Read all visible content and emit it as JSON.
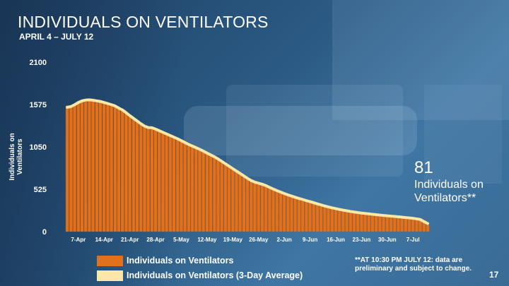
{
  "slide": {
    "title": "INDIVIDUALS ON VENTILATORS",
    "subtitle": "APRIL 4 – JULY 12",
    "callout_number": "81",
    "callout_text": "Individuals on Ventilators**",
    "footnote": "**AT 10:30 PM JULY 12: data are preliminary and subject to change.",
    "slide_number": "17"
  },
  "colors": {
    "bar": "#e2711d",
    "bar_edge": "#b5560e",
    "average_line": "#fbe8a6",
    "text": "#ffffff"
  },
  "chart_data": {
    "type": "bar",
    "title": "INDIVIDUALS ON VENTILATORS",
    "ylabel": "Individuals on Ventilators",
    "xlabel": "",
    "ylim": [
      0,
      2100
    ],
    "yticks": [
      0,
      525,
      1050,
      1575,
      2100
    ],
    "xtick_labels": [
      "7-Apr",
      "14-Apr",
      "21-Apr",
      "28-Apr",
      "5-May",
      "12-May",
      "19-May",
      "26-May",
      "2-Jun",
      "9-Jun",
      "16-Jun",
      "23-Jun",
      "30-Jun",
      "7-Jul"
    ],
    "xtick_indices": [
      3,
      10,
      17,
      24,
      31,
      38,
      45,
      52,
      59,
      66,
      73,
      80,
      87,
      94
    ],
    "grid": false,
    "legend_position": "bottom",
    "series": [
      {
        "name": "Individuals on Ventilators",
        "kind": "bar",
        "values": [
          1560,
          1540,
          1580,
          1600,
          1620,
          1610,
          1630,
          1640,
          1600,
          1620,
          1610,
          1590,
          1580,
          1560,
          1530,
          1510,
          1480,
          1440,
          1400,
          1370,
          1340,
          1300,
          1280,
          1290,
          1270,
          1250,
          1230,
          1210,
          1190,
          1170,
          1150,
          1130,
          1100,
          1080,
          1060,
          1040,
          1020,
          1000,
          970,
          950,
          930,
          900,
          870,
          840,
          810,
          780,
          750,
          720,
          690,
          660,
          630,
          610,
          600,
          590,
          570,
          550,
          525,
          510,
          490,
          470,
          455,
          440,
          425,
          410,
          398,
          385,
          370,
          358,
          345,
          330,
          318,
          305,
          295,
          285,
          275,
          265,
          258,
          250,
          243,
          236,
          230,
          225,
          220,
          215,
          210,
          205,
          200,
          196,
          192,
          188,
          184,
          180,
          175,
          170,
          165,
          160,
          150,
          140,
          81
        ]
      },
      {
        "name": "Individuals on Ventilators (3-Day Average)",
        "kind": "line",
        "values": [
          1540,
          1550,
          1573,
          1600,
          1620,
          1630,
          1633,
          1628,
          1620,
          1613,
          1600,
          1587,
          1573,
          1557,
          1530,
          1507,
          1473,
          1437,
          1403,
          1370,
          1337,
          1307,
          1290,
          1287,
          1270,
          1250,
          1230,
          1210,
          1190,
          1170,
          1150,
          1127,
          1103,
          1080,
          1060,
          1040,
          1020,
          997,
          973,
          950,
          927,
          900,
          870,
          840,
          810,
          780,
          750,
          720,
          690,
          660,
          633,
          613,
          600,
          587,
          570,
          548,
          528,
          508,
          490,
          472,
          455,
          440,
          425,
          411,
          398,
          384,
          371,
          358,
          344,
          331,
          318,
          306,
          295,
          285,
          275,
          266,
          258,
          250,
          243,
          236,
          230,
          225,
          220,
          215,
          210,
          205,
          200,
          196,
          192,
          188,
          184,
          179,
          174,
          170,
          165,
          158,
          150,
          124,
          100
        ]
      }
    ]
  }
}
